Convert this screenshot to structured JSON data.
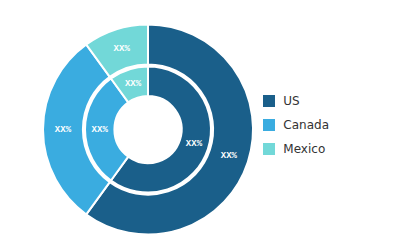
{
  "chart_data": {
    "type": "pie",
    "categories": [
      "US",
      "Canada",
      "Mexico"
    ],
    "colors": [
      "#1a5f8a",
      "#3aace0",
      "#72d8d8"
    ],
    "series": [
      {
        "values": [
          60,
          30,
          10
        ],
        "value_labels": [
          "XX%",
          "XX%",
          "XX%"
        ]
      },
      {
        "values": [
          60,
          30,
          10
        ],
        "value_labels": [
          "XX%",
          "XX%",
          "XX%"
        ]
      }
    ],
    "data_labels": true,
    "legend": "right"
  }
}
